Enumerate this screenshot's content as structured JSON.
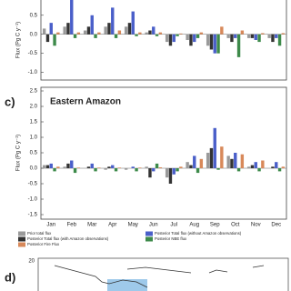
{
  "chart_data": [
    {
      "type": "bar",
      "y_label": "Flux (Pg C y⁻¹)",
      "categories": [
        "Jan",
        "Feb",
        "Mar",
        "Apr",
        "May",
        "Jun",
        "Jul",
        "Aug",
        "Sep",
        "Oct",
        "Nov",
        "Dec"
      ],
      "series": [
        {
          "name": "Prior total flux",
          "color": "#9a9a9a",
          "values": [
            0.15,
            0.2,
            0.1,
            0.2,
            0.2,
            0.05,
            -0.2,
            -0.15,
            -0.3,
            -0.1,
            -0.1,
            -0.1
          ]
        },
        {
          "name": "Posterior Total flux (with Amazon observations)",
          "color": "#333333",
          "values": [
            -0.2,
            0.3,
            0.2,
            0.3,
            0.3,
            0.1,
            -0.3,
            -0.3,
            -0.4,
            -0.2,
            -0.1,
            -0.2
          ]
        },
        {
          "name": "Posterior Total flux (without Amazon observations)",
          "color": "#4a5fc9",
          "values": [
            0.3,
            1.0,
            0.5,
            0.7,
            0.6,
            0.2,
            -0.2,
            -0.2,
            -0.5,
            -0.1,
            -0.15,
            -0.1
          ]
        },
        {
          "name": "Posterior NBE flux",
          "color": "#3d8a4a",
          "values": [
            -0.3,
            -0.1,
            -0.1,
            -0.1,
            -0.05,
            -0.05,
            -0.05,
            -0.1,
            -0.5,
            -0.6,
            -0.2,
            -0.3
          ]
        },
        {
          "name": "Posterior Fire Flux",
          "color": "#d8895a",
          "values": [
            0.05,
            0.05,
            0.05,
            0.1,
            0.05,
            0.05,
            0.02,
            0.05,
            0.2,
            0.1,
            0.03,
            0.03
          ]
        }
      ],
      "ylim": [
        -1.2,
        0.9
      ],
      "yticks": [
        {
          "value": 0.5,
          "label": "0.5"
        },
        {
          "value": 0,
          "label": "0.0"
        },
        -0.5,
        {
          "value": -1,
          "label": "-1.0"
        }
      ]
    },
    {
      "type": "bar",
      "panel_label": "c)",
      "title": "Eastern Amazon",
      "y_label": "Flux (Pg C y⁻¹)",
      "categories": [
        "Jan",
        "Feb",
        "Mar",
        "Apr",
        "May",
        "Jun",
        "Jul",
        "Aug",
        "Sep",
        "Oct",
        "Nov",
        "Dec"
      ],
      "series": [
        {
          "name": "Prior total flux",
          "color": "#9a9a9a",
          "values": [
            0.1,
            0.05,
            0.0,
            -0.05,
            -0.05,
            0.05,
            -0.3,
            0.2,
            0.5,
            0.4,
            0.05,
            0.0
          ]
        },
        {
          "name": "Posterior Total flux (with Amazon observations)",
          "color": "#333333",
          "values": [
            0.1,
            0.15,
            0.05,
            0.05,
            0.0,
            -0.3,
            -0.5,
            0.1,
            0.65,
            0.3,
            0.1,
            0.05
          ]
        },
        {
          "name": "Posterior Total flux (without Amazon observations)",
          "color": "#4a5fc9",
          "values": [
            0.15,
            0.25,
            0.15,
            0.1,
            0.05,
            -0.1,
            -0.2,
            0.4,
            1.3,
            0.5,
            0.2,
            0.2
          ]
        },
        {
          "name": "Posterior NBE flux",
          "color": "#3d8a4a",
          "values": [
            -0.1,
            -0.15,
            -0.1,
            -0.1,
            -0.1,
            0.15,
            -0.1,
            -0.15,
            -0.05,
            -0.1,
            -0.1,
            -0.1
          ]
        },
        {
          "name": "Posterior Fire Flux",
          "color": "#d8895a",
          "values": [
            0.05,
            0.02,
            0.02,
            0.02,
            0.02,
            0.03,
            0.05,
            0.3,
            0.7,
            0.45,
            0.25,
            0.05
          ]
        }
      ],
      "ylim": [
        -1.5,
        2.5
      ],
      "yticks": [
        {
          "value": 2.5,
          "label": "2.5"
        },
        {
          "value": 2,
          "label": "2.0"
        },
        1.5,
        {
          "value": 1,
          "label": "1.0"
        },
        0.5,
        {
          "value": 0,
          "label": "0.0"
        },
        -0.5,
        {
          "value": -1,
          "label": "-1.0"
        },
        -1.5
      ]
    }
  ],
  "map_panel": {
    "panel_label": "d)",
    "lat_label": "20"
  }
}
